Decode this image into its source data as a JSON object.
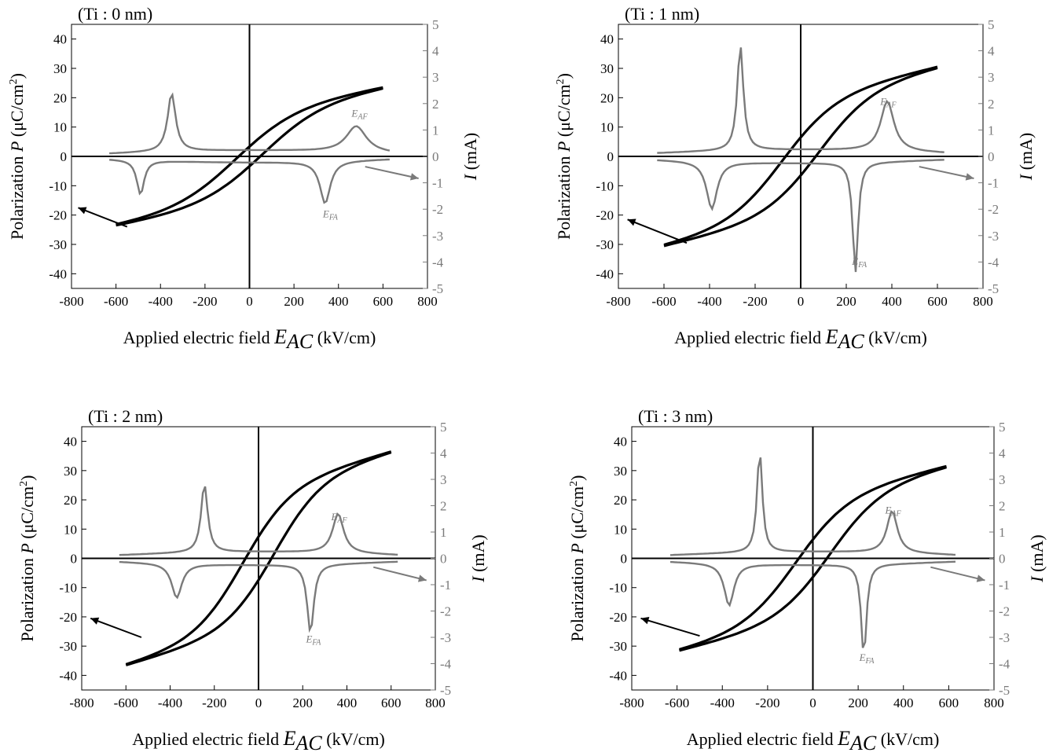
{
  "colors": {
    "polarization": "#000000",
    "current": "#7a7a7a"
  },
  "chart_data": [
    {
      "type": "line",
      "title": "(Ti : 0 nm)",
      "xlabel": "Applied electric field E_AC (kV/cm)",
      "xlabel_prefix": "Applied electric field ",
      "xlabel_var": "E",
      "xlabel_sub": "AC",
      "xlabel_suffix": " (kV/cm)",
      "ylabel": "Polarization P (μC/cm2)",
      "ylabel_prefix": "Polarization ",
      "ylabel_var": "P",
      "ylabel_unit": " (μC/cm",
      "ylabel_sup": "2",
      "ylabel_close": ")",
      "y2label_var": "I",
      "y2label_unit": " (mA)",
      "xlim": [
        -800,
        800
      ],
      "ylim": [
        -45,
        45
      ],
      "y2lim": [
        -5,
        5
      ],
      "xticks": [
        -800,
        -600,
        -400,
        -200,
        0,
        200,
        400,
        600,
        800
      ],
      "yticks": [
        -40,
        -30,
        -20,
        -10,
        0,
        10,
        20,
        30,
        40
      ],
      "y2ticks": [
        -5,
        -4,
        -3,
        -2,
        -1,
        0,
        1,
        2,
        3,
        4,
        5
      ],
      "hysteresis": {
        "emax": 600,
        "pmax": 23.5,
        "ec": 60,
        "pr": 0.9,
        "sat": 0.0,
        "curv": 1.1
      },
      "current": {
        "emax": 630,
        "base": 0.1,
        "pos_peaks": [
          {
            "x": -350,
            "h": 2.2,
            "w": 22
          },
          {
            "x": 480,
            "h": 1.0,
            "w": 55
          }
        ],
        "neg_peaks": [
          {
            "x": 340,
            "h": 1.6,
            "w": 28
          },
          {
            "x": -490,
            "h": 1.3,
            "w": 20
          }
        ]
      },
      "annotations": {
        "eaf": {
          "label": "E",
          "sub": "AF",
          "x": 480,
          "y": 1.5
        },
        "efa": {
          "label": "E",
          "sub": "FA",
          "x": 330,
          "y": -2.3
        }
      },
      "arrows": {
        "left": {
          "from": [
            -550,
            -24
          ],
          "to": [
            -770,
            -17.5
          ]
        },
        "right": {
          "from": [
            520,
            -3.5
          ],
          "to": [
            760,
            -7.5
          ]
        }
      }
    },
    {
      "type": "line",
      "title": "(Ti : 1 nm)",
      "xlabel": "Applied electric field E_AC (kV/cm)",
      "xlabel_prefix": "Applied electric field ",
      "xlabel_var": "E",
      "xlabel_sub": "AC",
      "xlabel_suffix": " (kV/cm)",
      "ylabel": "Polarization P (μC/cm2)",
      "ylabel_prefix": "Polarization ",
      "ylabel_var": "P",
      "ylabel_unit": " (μC/cm",
      "ylabel_sup": "2",
      "ylabel_close": ")",
      "y2label_var": "I",
      "y2label_unit": " (mA)",
      "xlim": [
        -800,
        800
      ],
      "ylim": [
        -45,
        45
      ],
      "y2lim": [
        -5,
        5
      ],
      "xticks": [
        -800,
        -600,
        -400,
        -200,
        0,
        200,
        400,
        600,
        800
      ],
      "yticks": [
        -40,
        -30,
        -20,
        -10,
        0,
        10,
        20,
        30,
        40
      ],
      "y2ticks": [
        -5,
        -4,
        -3,
        -2,
        -1,
        0,
        1,
        2,
        3,
        4,
        5
      ],
      "hysteresis": {
        "emax": 600,
        "pmax": 30.5,
        "ec": 80,
        "pr": 1.5,
        "sat": 1.0,
        "curv": 1.3
      },
      "current": {
        "emax": 630,
        "base": 0.12,
        "pos_peaks": [
          {
            "x": -265,
            "h": 4.0,
            "w": 16
          },
          {
            "x": 380,
            "h": 1.9,
            "w": 35
          }
        ],
        "neg_peaks": [
          {
            "x": 240,
            "h": 4.2,
            "w": 14
          },
          {
            "x": -390,
            "h": 1.8,
            "w": 28
          }
        ]
      },
      "annotations": {
        "eaf": {
          "label": "E",
          "sub": "AF",
          "x": 370,
          "y": 1.95
        },
        "efa": {
          "label": "E",
          "sub": "FA",
          "x": 225,
          "y": -4.1
        }
      },
      "arrows": {
        "left": {
          "from": [
            -500,
            -29.5
          ],
          "to": [
            -760,
            -21.5
          ]
        },
        "right": {
          "from": [
            520,
            -3.5
          ],
          "to": [
            760,
            -7.5
          ]
        }
      }
    },
    {
      "type": "line",
      "title": "(Ti : 2 nm)",
      "xlabel": "Applied electric field E_AC (kV/cm)",
      "xlabel_prefix": "Applied electric field ",
      "xlabel_var": "E",
      "xlabel_sub": "AC",
      "xlabel_suffix": " (kV/cm)",
      "ylabel": "Polarization P (μC/cm2)",
      "ylabel_prefix": "Polarization ",
      "ylabel_var": "P",
      "ylabel_unit": " (μC/cm",
      "ylabel_sup": "2",
      "ylabel_close": ")",
      "y2label_var": "I",
      "y2label_unit": " (mA)",
      "xlim": [
        -800,
        800
      ],
      "ylim": [
        -45,
        45
      ],
      "y2lim": [
        -5,
        5
      ],
      "xticks": [
        -800,
        -600,
        -400,
        -200,
        0,
        200,
        400,
        600,
        800
      ],
      "yticks": [
        -40,
        -30,
        -20,
        -10,
        0,
        10,
        20,
        30,
        40
      ],
      "y2ticks": [
        -5,
        -4,
        -3,
        -2,
        -1,
        0,
        1,
        2,
        3,
        4,
        5
      ],
      "hysteresis": {
        "emax": 600,
        "pmax": 36.5,
        "ec": 70,
        "pr": 1.5,
        "sat": 1.5,
        "curv": 1.4
      },
      "current": {
        "emax": 630,
        "base": 0.12,
        "pos_peaks": [
          {
            "x": -245,
            "h": 2.6,
            "w": 18
          },
          {
            "x": 360,
            "h": 1.5,
            "w": 30
          }
        ],
        "neg_peaks": [
          {
            "x": 235,
            "h": 2.6,
            "w": 18
          },
          {
            "x": -370,
            "h": 1.3,
            "w": 28
          }
        ]
      },
      "annotations": {
        "eaf": {
          "label": "E",
          "sub": "AF",
          "x": 350,
          "y": 1.45
        },
        "efa": {
          "label": "E",
          "sub": "FA",
          "x": 215,
          "y": -3.2
        }
      },
      "arrows": {
        "left": {
          "from": [
            -530,
            -27
          ],
          "to": [
            -760,
            -20.5
          ]
        },
        "right": {
          "from": [
            520,
            -3.0
          ],
          "to": [
            760,
            -7.5
          ]
        }
      }
    },
    {
      "type": "line",
      "title": "(Ti : 3 nm)",
      "xlabel": "Applied electric field E_AC (kV/cm)",
      "xlabel_prefix": "Applied electric field ",
      "xlabel_var": "E",
      "xlabel_sub": "AC",
      "xlabel_suffix": " (kV/cm)",
      "ylabel": "Polarization P (μC/cm2)",
      "ylabel_prefix": "Polarization ",
      "ylabel_var": "P",
      "ylabel_unit": " (μC/cm",
      "ylabel_sup": "2",
      "ylabel_close": ")",
      "y2label_var": "I",
      "y2label_unit": " (mA)",
      "xlim": [
        -800,
        800
      ],
      "ylim": [
        -45,
        45
      ],
      "y2lim": [
        -5,
        5
      ],
      "xticks": [
        -800,
        -600,
        -400,
        -200,
        0,
        200,
        400,
        600,
        800
      ],
      "yticks": [
        -40,
        -30,
        -20,
        -10,
        0,
        10,
        20,
        30,
        40
      ],
      "y2ticks": [
        -5,
        -4,
        -3,
        -2,
        -1,
        0,
        1,
        2,
        3,
        4,
        5
      ],
      "hysteresis": {
        "emax": 590,
        "pmax": 31.5,
        "ec": 75,
        "pr": 1.5,
        "sat": 1.0,
        "curv": 1.3
      },
      "current": {
        "emax": 630,
        "base": 0.12,
        "pos_peaks": [
          {
            "x": -235,
            "h": 3.9,
            "w": 14
          },
          {
            "x": 350,
            "h": 1.6,
            "w": 28
          }
        ],
        "neg_peaks": [
          {
            "x": 225,
            "h": 3.5,
            "w": 14
          },
          {
            "x": -370,
            "h": 1.6,
            "w": 26
          }
        ]
      },
      "annotations": {
        "eaf": {
          "label": "E",
          "sub": "AF",
          "x": 340,
          "y": 1.7
        },
        "efa": {
          "label": "E",
          "sub": "FA",
          "x": 205,
          "y": -3.9
        }
      },
      "arrows": {
        "left": {
          "from": [
            -500,
            -26.5
          ],
          "to": [
            -760,
            -20.5
          ]
        },
        "right": {
          "from": [
            520,
            -3.0
          ],
          "to": [
            760,
            -7.5
          ]
        }
      }
    }
  ]
}
